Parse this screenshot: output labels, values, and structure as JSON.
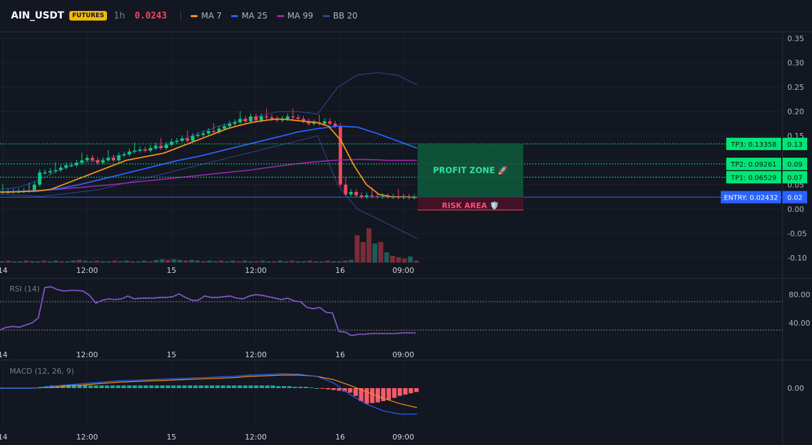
{
  "header": {
    "symbol": "AIN_USDT",
    "badge": "FUTURES",
    "timeframe": "1h",
    "last_price": "0.0243",
    "legend": [
      {
        "name": "MA 7",
        "color": "#f7931a"
      },
      {
        "name": "MA 25",
        "color": "#2962ff"
      },
      {
        "name": "MA 99",
        "color": "#9c27b0"
      },
      {
        "name": "BB 20",
        "color": "#2e4a8f"
      }
    ]
  },
  "chart_data": [
    {
      "type": "candlestick",
      "panel": "price",
      "y_ticks": [
        "0.35",
        "0.30",
        "0.25",
        "0.20",
        "0.15",
        "0.10",
        "0.05",
        "0.00",
        "-0.05",
        "-0.10"
      ],
      "ylim": [
        -0.11,
        0.36
      ],
      "x_ticks": [
        "14",
        "12:00",
        "15",
        "12:00",
        "16",
        "09:00"
      ],
      "closes": [
        0.035,
        0.035,
        0.036,
        0.036,
        0.037,
        0.038,
        0.05,
        0.075,
        0.075,
        0.078,
        0.08,
        0.085,
        0.09,
        0.09,
        0.095,
        0.1,
        0.105,
        0.1,
        0.095,
        0.1,
        0.105,
        0.1,
        0.11,
        0.112,
        0.118,
        0.12,
        0.122,
        0.12,
        0.125,
        0.13,
        0.125,
        0.132,
        0.138,
        0.14,
        0.145,
        0.14,
        0.15,
        0.152,
        0.155,
        0.16,
        0.158,
        0.165,
        0.17,
        0.175,
        0.178,
        0.185,
        0.18,
        0.19,
        0.182,
        0.19,
        0.188,
        0.185,
        0.182,
        0.185,
        0.19,
        0.188,
        0.185,
        0.18,
        0.175,
        0.178,
        0.175,
        0.18,
        0.175,
        0.17,
        0.05,
        0.03,
        0.035,
        0.028,
        0.025,
        0.028,
        0.026,
        0.025,
        0.026,
        0.025,
        0.025,
        0.024,
        0.025,
        0.024,
        0.0243
      ],
      "ma7": [
        0.035,
        0.035,
        0.036,
        0.037,
        0.04,
        0.05,
        0.06,
        0.07,
        0.08,
        0.09,
        0.1,
        0.105,
        0.11,
        0.115,
        0.125,
        0.135,
        0.145,
        0.155,
        0.165,
        0.172,
        0.178,
        0.182,
        0.185,
        0.183,
        0.18,
        0.178,
        0.17,
        0.14,
        0.09,
        0.05,
        0.03,
        0.025,
        0.025,
        0.0243
      ],
      "ma25": [
        0.035,
        0.036,
        0.038,
        0.042,
        0.05,
        0.06,
        0.07,
        0.08,
        0.09,
        0.1,
        0.108,
        0.118,
        0.128,
        0.138,
        0.148,
        0.158,
        0.165,
        0.17,
        0.168,
        0.155,
        0.14,
        0.125
      ],
      "ma99": [
        0.035,
        0.037,
        0.04,
        0.045,
        0.05,
        0.056,
        0.062,
        0.068,
        0.074,
        0.08,
        0.088,
        0.095,
        0.1,
        0.102,
        0.1,
        0.1
      ],
      "bb_upper": [
        0.04,
        0.045,
        0.06,
        0.08,
        0.095,
        0.1,
        0.11,
        0.12,
        0.125,
        0.14,
        0.155,
        0.17,
        0.18,
        0.19,
        0.2,
        0.2,
        0.195,
        0.25,
        0.275,
        0.28,
        0.275,
        0.255
      ],
      "bb_lower": [
        0.03,
        0.028,
        0.026,
        0.03,
        0.035,
        0.04,
        0.05,
        0.06,
        0.07,
        0.08,
        0.09,
        0.1,
        0.11,
        0.12,
        0.13,
        0.14,
        0.15,
        0.05,
        0.0,
        -0.02,
        -0.04,
        -0.06
      ],
      "levels": [
        {
          "label": "TP3: 0.13358",
          "value": 0.13358,
          "tag": "0.13",
          "color": "#00e676"
        },
        {
          "label": "TP2: 0.09261",
          "value": 0.09261,
          "tag": "0.09",
          "color": "#00e676"
        },
        {
          "label": "TP1: 0.06529",
          "value": 0.06529,
          "tag": "0.07",
          "color": "#00e676"
        },
        {
          "label": "ENTRY: 0.02432",
          "value": 0.02432,
          "tag": "0.02",
          "color": "#2962ff"
        }
      ],
      "zones": {
        "profit": "PROFIT ZONE 🚀",
        "risk": "RISK AREA 🛡️"
      },
      "volume": [
        2,
        3,
        2,
        2,
        3,
        2,
        2,
        3,
        2,
        3,
        2,
        2,
        3,
        4,
        3,
        2,
        3,
        2,
        2,
        3,
        2,
        3,
        2,
        2,
        3,
        2,
        4,
        5,
        4,
        5,
        4,
        3,
        4,
        3,
        2,
        3,
        2,
        3,
        2,
        3,
        2,
        3,
        2,
        2,
        3,
        2,
        2,
        3,
        2,
        3,
        2,
        2,
        3,
        2,
        2,
        3,
        2,
        2,
        3,
        4,
        40,
        30,
        50,
        28,
        30,
        15,
        10,
        8,
        6,
        9,
        3
      ]
    },
    {
      "type": "line",
      "panel": "rsi",
      "title": "RSI (14)",
      "y_ticks": [
        "80.00",
        "40.00"
      ],
      "ylim": [
        10,
        100
      ],
      "overbought": 70,
      "oversold": 30,
      "values": [
        30,
        34,
        35,
        34,
        37,
        40,
        47,
        90,
        91,
        87,
        85,
        86,
        86,
        85,
        79,
        68,
        72,
        74,
        73,
        74,
        78,
        74,
        75,
        75,
        75,
        76,
        76,
        77,
        81,
        76,
        72,
        72,
        78,
        76,
        76,
        77,
        78,
        75,
        74,
        78,
        80,
        79,
        77,
        75,
        73,
        75,
        71,
        70,
        62,
        60,
        62,
        55,
        54,
        28,
        27,
        22,
        24,
        24,
        25,
        25,
        25,
        25,
        25,
        26,
        26,
        26
      ]
    },
    {
      "type": "bar",
      "panel": "macd",
      "title": "MACD (12, 26, 9)",
      "y_ticks": [
        "0.00"
      ],
      "ylim": [
        -0.06,
        0.04
      ],
      "histogram": [
        0,
        0,
        0,
        0,
        0,
        0,
        0.001,
        0.002,
        0.003,
        0.004,
        0.004,
        0.005,
        0.005,
        0.005,
        0.005,
        0.005,
        0.004,
        0.004,
        0.004,
        0.004,
        0.004,
        0.004,
        0.004,
        0.004,
        0.004,
        0.004,
        0.004,
        0.004,
        0.004,
        0.004,
        0.004,
        0.004,
        0.004,
        0.004,
        0.004,
        0.004,
        0.004,
        0.004,
        0.004,
        0.004,
        0.004,
        0.004,
        0.004,
        0.004,
        0.004,
        0.004,
        0.004,
        0.004,
        0.004,
        0.004,
        0.003,
        0.003,
        0.003,
        0.002,
        0.002,
        0.002,
        0.001,
        0.0,
        -0.001,
        -0.002,
        -0.003,
        -0.004,
        -0.005,
        -0.007,
        -0.012,
        -0.02,
        -0.024,
        -0.023,
        -0.022,
        -0.02,
        -0.018,
        -0.015,
        -0.012,
        -0.01,
        -0.008,
        -0.006
      ],
      "macd": [
        0,
        0,
        0,
        0.002,
        0.005,
        0.007,
        0.009,
        0.011,
        0.012,
        0.013,
        0.014,
        0.015,
        0.016,
        0.017,
        0.018,
        0.02,
        0.021,
        0.022,
        0.021,
        0.018,
        0.008,
        -0.01,
        -0.025,
        -0.035,
        -0.04,
        -0.04
      ],
      "signal": [
        0,
        0,
        0,
        0.001,
        0.003,
        0.005,
        0.007,
        0.009,
        0.01,
        0.011,
        0.012,
        0.013,
        0.014,
        0.015,
        0.016,
        0.018,
        0.019,
        0.02,
        0.02,
        0.018,
        0.013,
        0.004,
        -0.006,
        -0.016,
        -0.024,
        -0.03
      ]
    }
  ]
}
